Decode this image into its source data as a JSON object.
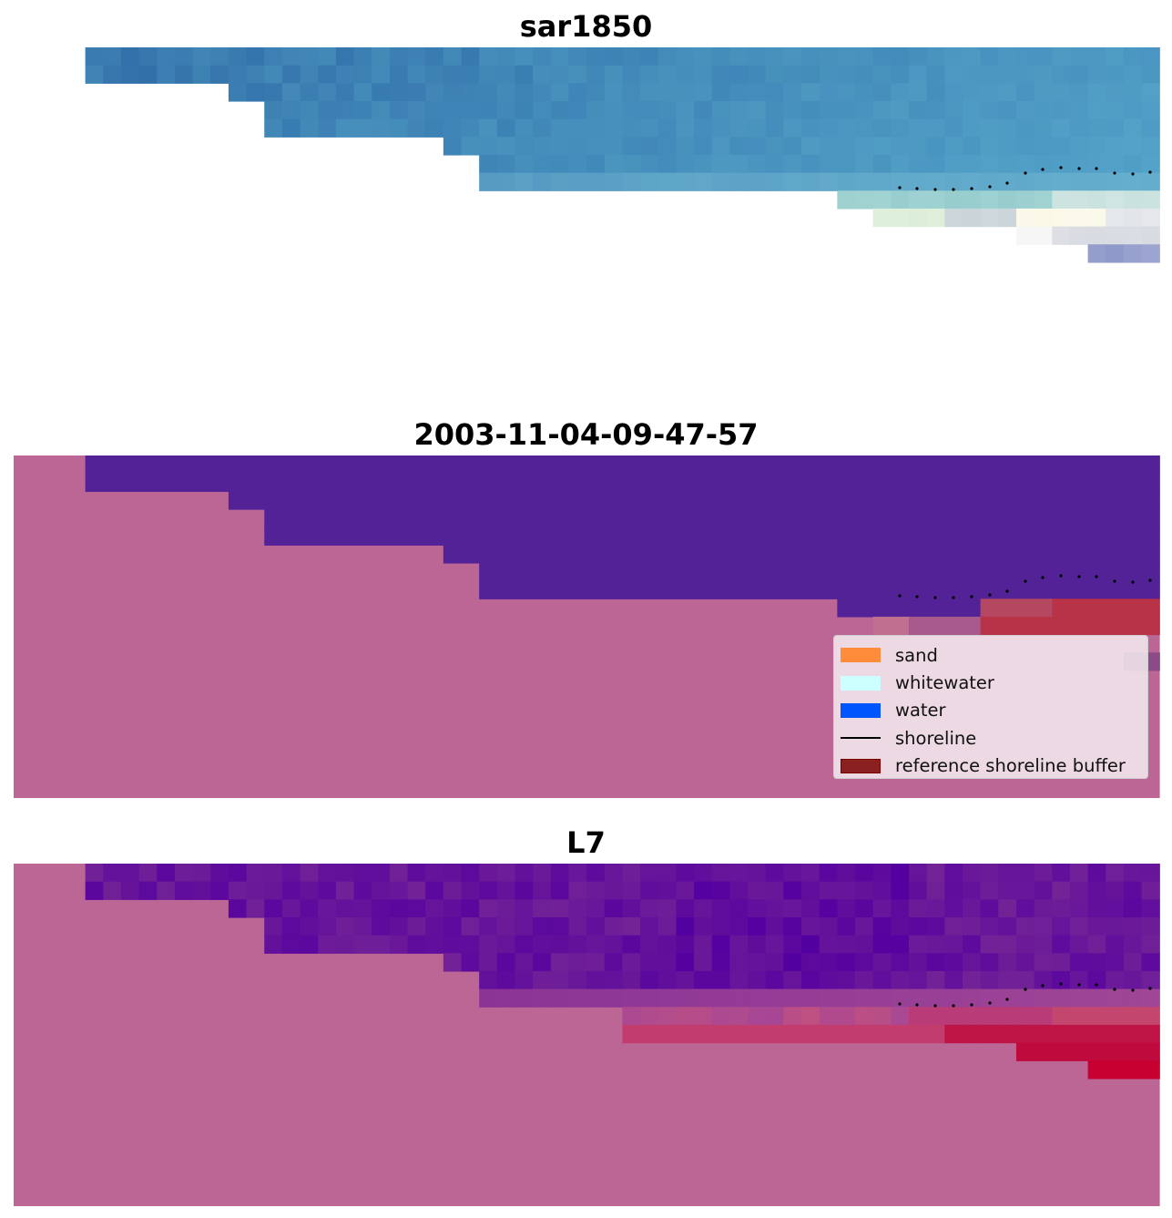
{
  "panels": [
    {
      "title": "sar1850",
      "style": "rgb"
    },
    {
      "title": "2003-11-04-09-47-57",
      "style": "classified"
    },
    {
      "title": "L7",
      "style": "probability"
    }
  ],
  "legend": {
    "items": [
      {
        "label": "sand",
        "color": "#ff8c3a",
        "kind": "patch"
      },
      {
        "label": "whitewater",
        "color": "#ccffff",
        "kind": "patch"
      },
      {
        "label": "water",
        "color": "#0055ff",
        "kind": "patch"
      },
      {
        "label": "shoreline",
        "color": "#000000",
        "kind": "line"
      },
      {
        "label": "reference shoreline buffer",
        "color": "#8b2020",
        "kind": "patch"
      }
    ]
  },
  "colors": {
    "nodata_pink": "#bb6695",
    "water_purple": "#532296",
    "buffer_red": "#b83248",
    "shoreline_dots": "#000000"
  }
}
